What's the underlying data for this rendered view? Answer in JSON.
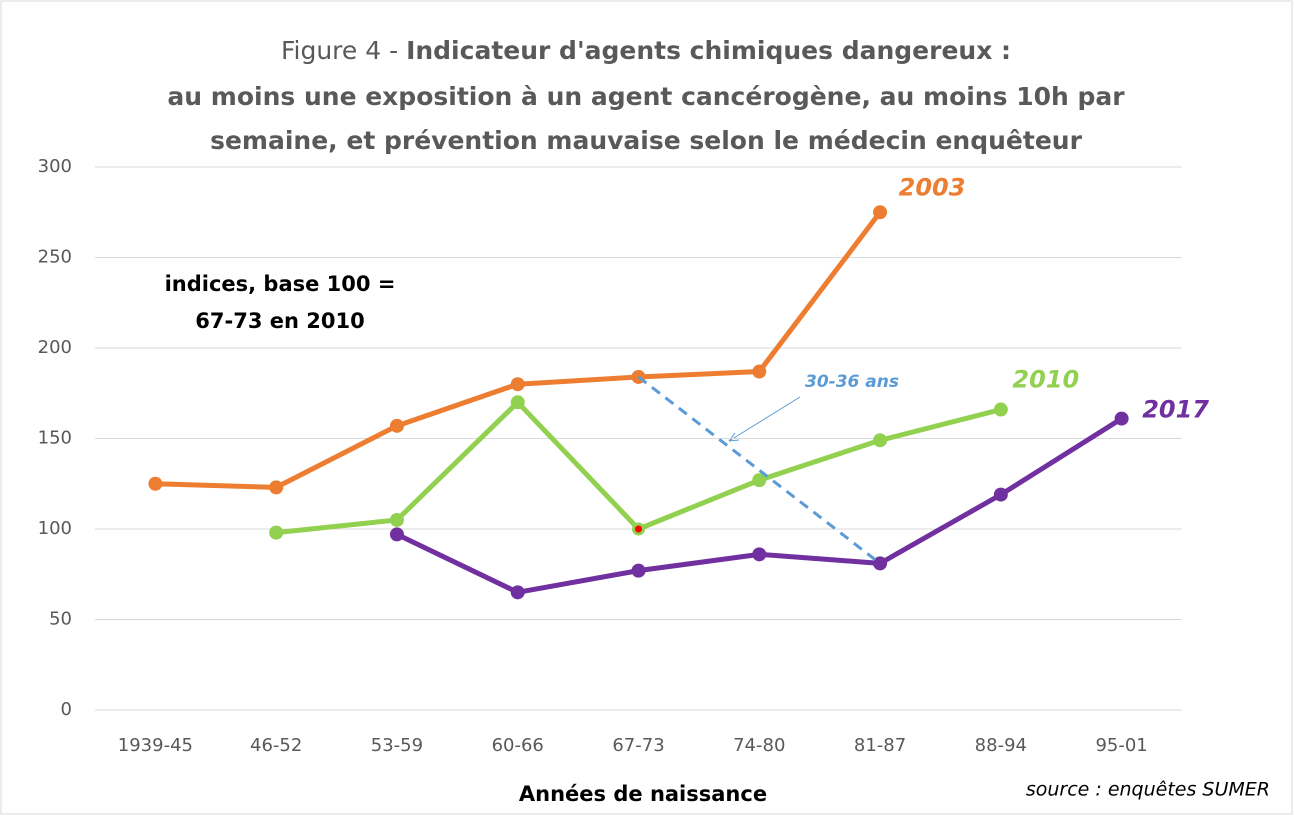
{
  "chart_data": {
    "type": "line",
    "title_prefix": "Figure 4 -",
    "title_lines": [
      "Indicateur d'agents chimiques dangereux :",
      "au moins une exposition à un agent cancérogène, au moins 10h par",
      "semaine, et prévention mauvaise selon le médecin enquêteur"
    ],
    "annotation_lines": [
      "indices, base 100 =",
      "67-73 en 2010"
    ],
    "x_label": "Années de naissance",
    "source": "source : enquêtes SUMER",
    "categories": [
      "1939-45",
      "46-52",
      "53-59",
      "60-66",
      "67-73",
      "74-80",
      "81-87",
      "88-94",
      "95-01"
    ],
    "series": [
      {
        "name": "2003",
        "color": "#ED7D31",
        "values": [
          125,
          123,
          157,
          180,
          184,
          187,
          275,
          null,
          null
        ]
      },
      {
        "name": "2010",
        "color": "#92D050",
        "values": [
          null,
          98,
          105,
          170,
          100,
          127,
          149,
          166,
          null
        ],
        "highlight": {
          "index": 4,
          "color": "#FF0000"
        }
      },
      {
        "name": "2017",
        "color": "#7030A0",
        "values": [
          null,
          null,
          97,
          65,
          77,
          86,
          81,
          119,
          161
        ]
      }
    ],
    "cohort_line": {
      "label": "30-36 ans",
      "color": "#5B9BD5",
      "values": [
        null,
        null,
        null,
        null,
        184,
        null,
        81,
        null,
        null
      ]
    },
    "ylim": [
      0,
      300
    ],
    "yticks": [
      0,
      50,
      100,
      150,
      200,
      250,
      300
    ],
    "grid": true
  }
}
